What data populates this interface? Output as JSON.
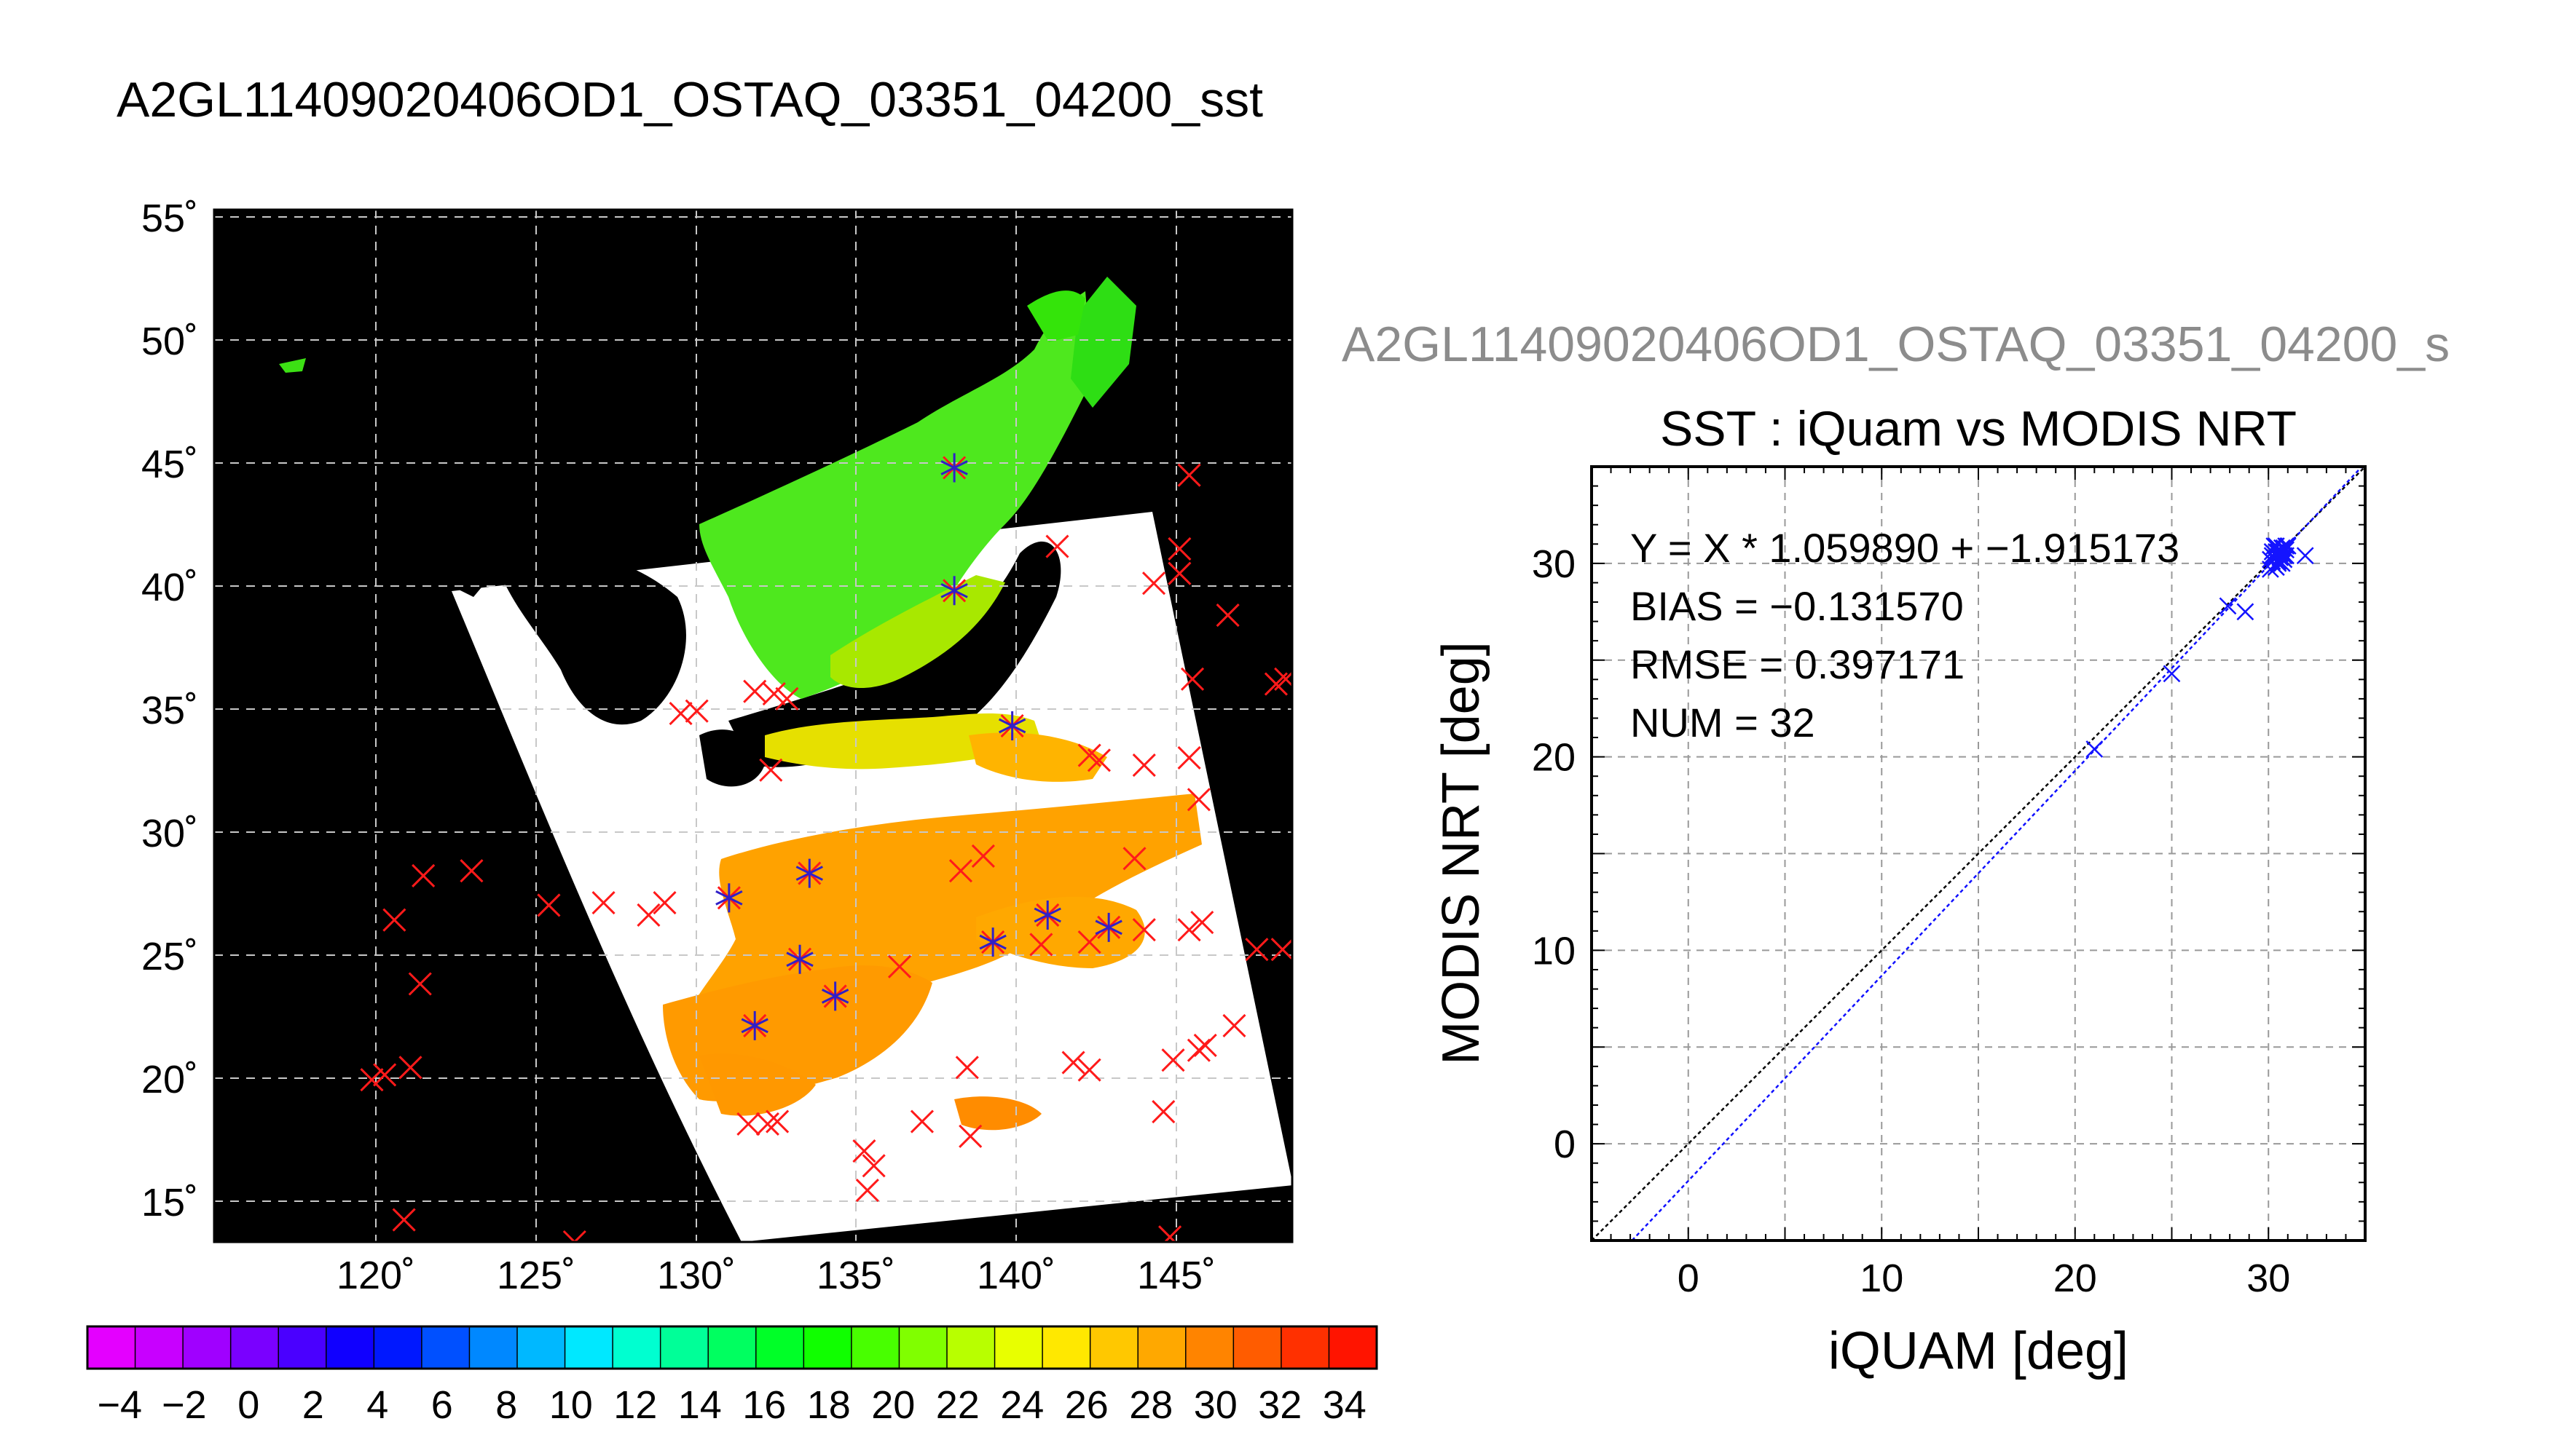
{
  "figure": {
    "main_title": "A2GL11409020406OD1_OSTAQ_03351_04200_sst",
    "right_title": "A2GL11409020406OD1_OSTAQ_03351_04200_s"
  },
  "map": {
    "lon_ticks": [
      "120˚",
      "125˚",
      "130˚",
      "135˚",
      "140˚",
      "145˚"
    ],
    "lat_ticks": [
      "55˚",
      "50˚",
      "45˚",
      "40˚",
      "35˚",
      "30˚",
      "25˚",
      "20˚",
      "15˚"
    ],
    "lon_values": [
      120,
      125,
      130,
      135,
      140,
      145
    ],
    "lat_values": [
      55,
      50,
      45,
      40,
      35,
      30,
      25,
      20,
      15
    ],
    "lon_range": [
      115,
      148.5
    ],
    "lat_range": [
      13.5,
      55.5
    ],
    "matched_points": [
      {
        "lon": 138,
        "lat": 45
      },
      {
        "lon": 138,
        "lat": 40
      },
      {
        "lon": 139.8,
        "lat": 34.5
      },
      {
        "lon": 131,
        "lat": 27.5
      },
      {
        "lon": 133.5,
        "lat": 28.5
      },
      {
        "lon": 133.2,
        "lat": 25
      },
      {
        "lon": 134.3,
        "lat": 23.5
      },
      {
        "lon": 131.8,
        "lat": 22.3
      },
      {
        "lon": 139.2,
        "lat": 25.7
      },
      {
        "lon": 140.9,
        "lat": 26.8
      },
      {
        "lon": 142.8,
        "lat": 26.3
      }
    ],
    "other_points": [
      {
        "lon": 145.3,
        "lat": 44.7
      },
      {
        "lon": 145,
        "lat": 41.7
      },
      {
        "lon": 144.2,
        "lat": 40.3
      },
      {
        "lon": 145,
        "lat": 40.7
      },
      {
        "lon": 146.5,
        "lat": 39
      },
      {
        "lon": 141.2,
        "lat": 41.8
      },
      {
        "lon": 145.4,
        "lat": 36.4
      },
      {
        "lon": 148,
        "lat": 36.2
      },
      {
        "lon": 148.3,
        "lat": 36.4
      },
      {
        "lon": 129.5,
        "lat": 35
      },
      {
        "lon": 130,
        "lat": 35.1
      },
      {
        "lon": 131.8,
        "lat": 35.9
      },
      {
        "lon": 132.4,
        "lat": 35.8
      },
      {
        "lon": 132.8,
        "lat": 35.6
      },
      {
        "lon": 132.3,
        "lat": 32.7
      },
      {
        "lon": 142.2,
        "lat": 33.3
      },
      {
        "lon": 142.5,
        "lat": 33.1
      },
      {
        "lon": 143.9,
        "lat": 32.9
      },
      {
        "lon": 145.3,
        "lat": 33.2
      },
      {
        "lon": 138.2,
        "lat": 28.6
      },
      {
        "lon": 138.9,
        "lat": 29.2
      },
      {
        "lon": 143.6,
        "lat": 29.1
      },
      {
        "lon": 145.6,
        "lat": 31.5
      },
      {
        "lon": 121.5,
        "lat": 28.4
      },
      {
        "lon": 123,
        "lat": 28.6
      },
      {
        "lon": 120.6,
        "lat": 26.6
      },
      {
        "lon": 125.4,
        "lat": 27.2
      },
      {
        "lon": 127.1,
        "lat": 27.3
      },
      {
        "lon": 128.5,
        "lat": 26.8
      },
      {
        "lon": 129,
        "lat": 27.3
      },
      {
        "lon": 121.4,
        "lat": 24
      },
      {
        "lon": 140.7,
        "lat": 25.6
      },
      {
        "lon": 142.2,
        "lat": 25.7
      },
      {
        "lon": 143.9,
        "lat": 26.2
      },
      {
        "lon": 145.3,
        "lat": 26.2
      },
      {
        "lon": 145.7,
        "lat": 26.5
      },
      {
        "lon": 147.4,
        "lat": 25.4
      },
      {
        "lon": 148.2,
        "lat": 25.4
      },
      {
        "lon": 136.3,
        "lat": 24.7
      },
      {
        "lon": 144.8,
        "lat": 20.9
      },
      {
        "lon": 145.6,
        "lat": 21.3
      },
      {
        "lon": 146.7,
        "lat": 22.3
      },
      {
        "lon": 141.7,
        "lat": 20.8
      },
      {
        "lon": 142.2,
        "lat": 20.5
      },
      {
        "lon": 138.4,
        "lat": 20.6
      },
      {
        "lon": 119.9,
        "lat": 20.1
      },
      {
        "lon": 120.3,
        "lat": 20.3
      },
      {
        "lon": 121.1,
        "lat": 20.6
      },
      {
        "lon": 131.6,
        "lat": 18.3
      },
      {
        "lon": 132.2,
        "lat": 18.3
      },
      {
        "lon": 132.5,
        "lat": 18.4
      },
      {
        "lon": 137,
        "lat": 18.4
      },
      {
        "lon": 138.5,
        "lat": 17.8
      },
      {
        "lon": 135.2,
        "lat": 17.2
      },
      {
        "lon": 135.5,
        "lat": 16.6
      },
      {
        "lon": 135.3,
        "lat": 15.6
      },
      {
        "lon": 144.5,
        "lat": 18.8
      },
      {
        "lon": 145.8,
        "lat": 21.5
      },
      {
        "lon": 120.9,
        "lat": 14.4
      },
      {
        "lon": 126.2,
        "lat": 13.5
      },
      {
        "lon": 144.7,
        "lat": 13.7
      }
    ]
  },
  "colorbar": {
    "labels": [
      "−4",
      "−2",
      "0",
      "2",
      "4",
      "6",
      "8",
      "10",
      "12",
      "14",
      "16",
      "18",
      "20",
      "22",
      "24",
      "26",
      "28",
      "30",
      "32",
      "34"
    ],
    "range": [
      -5,
      35
    ],
    "colors": [
      "#e400ff",
      "#c800ff",
      "#a000ff",
      "#7a00ff",
      "#4a00ff",
      "#1000ff",
      "#0018ff",
      "#0050ff",
      "#0088ff",
      "#00b8ff",
      "#00e8ff",
      "#00ffd0",
      "#00ff98",
      "#00ff60",
      "#00ff28",
      "#10ff00",
      "#48ff00",
      "#80ff00",
      "#b8ff00",
      "#e8ff00",
      "#ffe800",
      "#ffc800",
      "#ffa800",
      "#ff8400",
      "#ff5c00",
      "#ff3000",
      "#ff1400"
    ]
  },
  "chart_data": {
    "type": "scatter",
    "title": "SST : iQuam vs MODIS NRT",
    "xlabel": "iQUAM [deg]",
    "ylabel": "MODIS NRT [deg]",
    "xlim": [
      -5,
      35
    ],
    "ylim": [
      -5,
      35
    ],
    "xticks": [
      0,
      10,
      20,
      30
    ],
    "yticks": [
      0,
      10,
      20,
      30
    ],
    "grid": true,
    "annotations": [
      "Y = X * 1.059890 + −1.915173",
      "BIAS = −0.131570",
      "RMSE = 0.397171",
      "NUM = 32"
    ],
    "fit": {
      "slope": 1.05989,
      "intercept": -1.915173
    },
    "series": [
      {
        "x": [
          21,
          25,
          27.9,
          28.8,
          30.1,
          30.2,
          30.3,
          30.4,
          30.5,
          30.6,
          30.7,
          30.8,
          30.9,
          30.2,
          30.4,
          30.6,
          30.8,
          30.3,
          30.5,
          30.7,
          30.9,
          31.0,
          30.1,
          30.2,
          30.4,
          30.6,
          30.8,
          30.3,
          30.5,
          30.7,
          30.9,
          31.9
        ],
        "y": [
          20.4,
          24.3,
          27.8,
          27.5,
          29.7,
          30.6,
          30.3,
          30.9,
          30.0,
          30.5,
          30.8,
          30.2,
          30.9,
          30.1,
          29.8,
          30.7,
          30.4,
          30.9,
          30.6,
          30.0,
          30.7,
          30.9,
          30.2,
          30.4,
          30.6,
          30.3,
          30.8,
          30.5,
          30.1,
          30.6,
          30.4,
          30.4
        ]
      }
    ]
  }
}
